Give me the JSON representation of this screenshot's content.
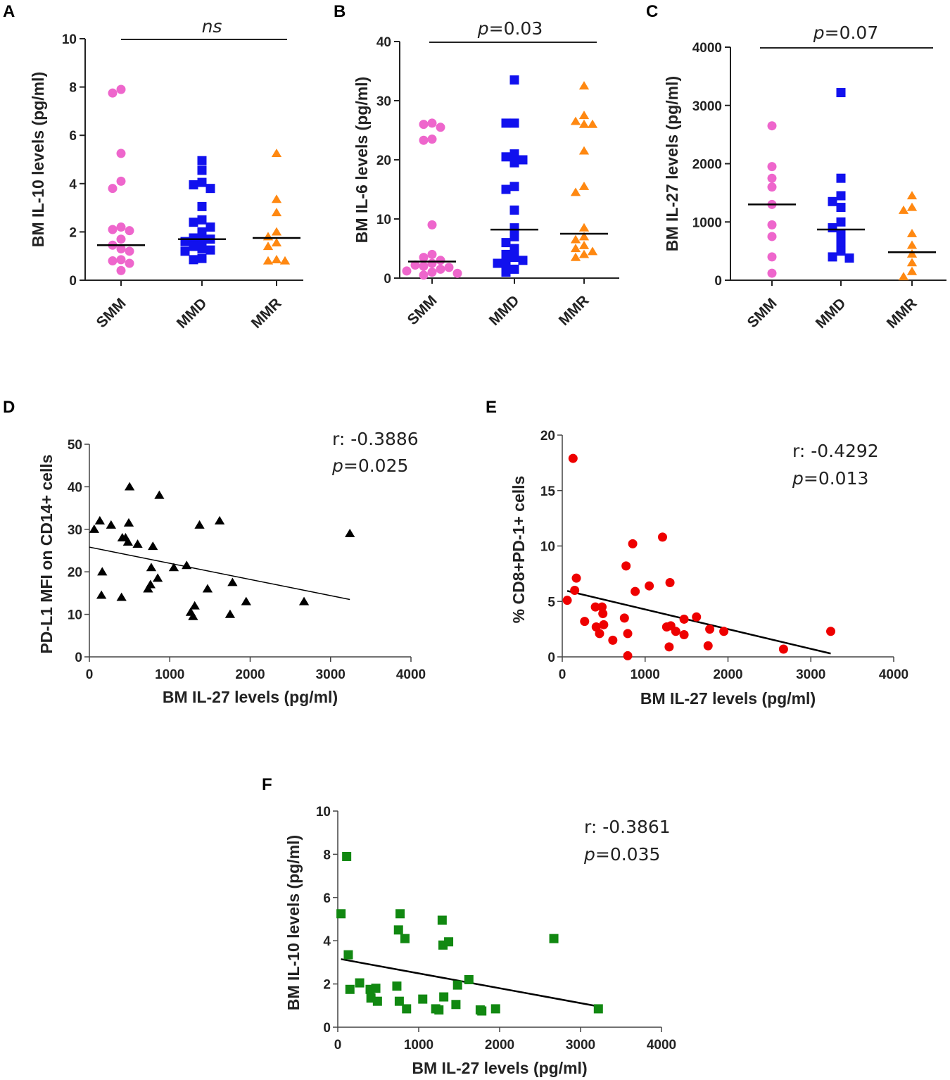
{
  "chart_data": [
    {
      "id": "A",
      "type": "scatter",
      "panel_label": "A",
      "ylabel": "BM IL-10 levels (pg/ml)",
      "ylim": [
        0,
        10
      ],
      "yticks": [
        0,
        2,
        4,
        6,
        8,
        10
      ],
      "categories": [
        "SMM",
        "MMD",
        "MMR"
      ],
      "colors": [
        "#ee66cc",
        "#1111ee",
        "#ff8811"
      ],
      "markers": [
        "circle",
        "square",
        "triangle"
      ],
      "groups": [
        [
          7.9,
          7.75,
          5.25,
          4.1,
          3.8,
          2.2,
          2.1,
          2.05,
          1.7,
          1.45,
          1.3,
          1.2,
          0.85,
          0.8,
          0.7,
          0.4
        ],
        [
          4.95,
          4.55,
          4.05,
          3.95,
          3.8,
          3.05,
          2.5,
          2.4,
          2.2,
          2.0,
          1.75,
          1.7,
          1.65,
          1.6,
          1.4,
          1.3,
          1.25,
          1.2,
          0.9,
          0.85
        ],
        [
          5.25,
          3.35,
          2.8,
          2.0,
          1.8,
          1.55,
          1.4,
          0.85,
          0.8,
          0.8
        ]
      ],
      "medians": [
        1.45,
        1.7,
        1.75
      ],
      "significance": "ns",
      "significance_italic": true
    },
    {
      "id": "B",
      "type": "scatter",
      "panel_label": "B",
      "ylabel": "BM IL-6 levels (pg/ml)",
      "ylim": [
        0,
        40
      ],
      "yticks": [
        0,
        10,
        20,
        30,
        40
      ],
      "categories": [
        "SMM",
        "MMD",
        "MMR"
      ],
      "colors": [
        "#ee66cc",
        "#1111ee",
        "#ff8811"
      ],
      "markers": [
        "circle",
        "square",
        "triangle"
      ],
      "groups": [
        [
          26.2,
          26.0,
          25.5,
          23.5,
          23.3,
          9.0,
          4.0,
          3.5,
          3.0,
          2.5,
          2.2,
          2.0,
          1.8,
          1.5,
          1.2,
          1.0,
          0.8,
          0.5
        ],
        [
          33.5,
          26.2,
          26.2,
          21.0,
          20.5,
          20.0,
          19.5,
          15.5,
          15.0,
          11.5,
          8.5,
          7.0,
          6.0,
          5.0,
          4.0,
          3.5,
          3.0,
          2.5,
          2.5,
          1.5,
          1.0
        ],
        [
          32.5,
          27.5,
          26.5,
          26.0,
          26.0,
          21.5,
          15.5,
          14.5,
          8.5,
          7.0,
          6.5,
          5.5,
          5.0,
          4.5,
          4.0,
          3.5
        ]
      ],
      "medians": [
        2.8,
        8.2,
        7.5
      ],
      "significance_prefix": "p",
      "significance_value": "=0.03"
    },
    {
      "id": "C",
      "type": "scatter",
      "panel_label": "C",
      "ylabel": "BM IL-27 levels (pg/ml)",
      "ylim": [
        0,
        4000
      ],
      "yticks": [
        0,
        1000,
        2000,
        3000,
        4000
      ],
      "categories": [
        "SMM",
        "MMD",
        "MMR"
      ],
      "colors": [
        "#ee66cc",
        "#1111ee",
        "#ff8811"
      ],
      "markers": [
        "circle",
        "square",
        "triangle"
      ],
      "groups": [
        [
          2650,
          1950,
          1750,
          1600,
          1300,
          950,
          750,
          400,
          120
        ],
        [
          3220,
          1750,
          1450,
          1350,
          1250,
          1000,
          900,
          800,
          650,
          500,
          400,
          380
        ],
        [
          1450,
          1250,
          1200,
          800,
          600,
          450,
          300,
          150,
          60
        ]
      ],
      "medians": [
        1300,
        870,
        480
      ],
      "significance_prefix": "p",
      "significance_value": "=0.07"
    },
    {
      "id": "D",
      "type": "scatter",
      "panel_label": "D",
      "xlabel": "BM IL-27 levels (pg/ml)",
      "ylabel": "PD-L1 MFI on CD14+ cells",
      "xlim": [
        0,
        4000
      ],
      "xticks": [
        0,
        1000,
        2000,
        3000,
        4000
      ],
      "ylim": [
        0,
        50
      ],
      "yticks": [
        0,
        10,
        20,
        30,
        40,
        50
      ],
      "color": "#000000",
      "marker": "triangle",
      "points": [
        [
          60,
          30
        ],
        [
          130,
          32
        ],
        [
          160,
          20
        ],
        [
          150,
          14.5
        ],
        [
          270,
          31
        ],
        [
          400,
          14
        ],
        [
          410,
          28
        ],
        [
          450,
          28
        ],
        [
          480,
          27
        ],
        [
          490,
          31.5
        ],
        [
          500,
          40
        ],
        [
          600,
          26.5
        ],
        [
          730,
          16
        ],
        [
          760,
          17
        ],
        [
          770,
          21
        ],
        [
          790,
          26
        ],
        [
          850,
          18.5
        ],
        [
          870,
          38
        ],
        [
          1050,
          21
        ],
        [
          1210,
          21.5
        ],
        [
          1260,
          10.5
        ],
        [
          1290,
          9.5
        ],
        [
          1310,
          12
        ],
        [
          1370,
          31
        ],
        [
          1470,
          16
        ],
        [
          1620,
          32
        ],
        [
          1750,
          10
        ],
        [
          1780,
          17.5
        ],
        [
          1950,
          13
        ],
        [
          2670,
          13
        ],
        [
          3240,
          29
        ]
      ],
      "regression": [
        [
          0,
          25.8
        ],
        [
          3240,
          13.5
        ]
      ],
      "r_label": "r: -0.3886",
      "p_prefix": "p",
      "p_value": "=0.025"
    },
    {
      "id": "E",
      "type": "scatter",
      "panel_label": "E",
      "xlabel": "BM IL-27 levels (pg/ml)",
      "ylabel": "% CD8+PD-1+ cells",
      "xlim": [
        0,
        4000
      ],
      "xticks": [
        0,
        1000,
        2000,
        3000,
        4000
      ],
      "ylim": [
        0,
        20
      ],
      "yticks": [
        0,
        5,
        10,
        15,
        20
      ],
      "color": "#ee0000",
      "marker": "circle",
      "points": [
        [
          60,
          5.1
        ],
        [
          130,
          17.9
        ],
        [
          150,
          6.0
        ],
        [
          170,
          7.1
        ],
        [
          270,
          3.2
        ],
        [
          400,
          4.5
        ],
        [
          410,
          2.7
        ],
        [
          450,
          2.1
        ],
        [
          480,
          4.5
        ],
        [
          490,
          3.9
        ],
        [
          500,
          2.9
        ],
        [
          610,
          1.5
        ],
        [
          750,
          3.5
        ],
        [
          770,
          8.2
        ],
        [
          790,
          0.1
        ],
        [
          790,
          2.1
        ],
        [
          850,
          10.2
        ],
        [
          880,
          5.9
        ],
        [
          1050,
          6.4
        ],
        [
          1210,
          10.8
        ],
        [
          1260,
          2.7
        ],
        [
          1290,
          0.9
        ],
        [
          1300,
          6.7
        ],
        [
          1310,
          2.8
        ],
        [
          1370,
          2.3
        ],
        [
          1470,
          3.4
        ],
        [
          1470,
          2.0
        ],
        [
          1620,
          3.6
        ],
        [
          1760,
          1.0
        ],
        [
          1780,
          2.5
        ],
        [
          1950,
          2.3
        ],
        [
          2670,
          0.7
        ],
        [
          3240,
          2.3
        ]
      ],
      "regression": [
        [
          60,
          5.95
        ],
        [
          3240,
          0.3
        ]
      ],
      "r_label": "r: -0.4292",
      "p_prefix": "p",
      "p_value": "=0.013"
    },
    {
      "id": "F",
      "type": "scatter",
      "panel_label": "F",
      "xlabel": "BM IL-27 levels (pg/ml)",
      "ylabel": "BM IL-10 levels (pg/ml)",
      "xlim": [
        0,
        4000
      ],
      "xticks": [
        0,
        1000,
        2000,
        3000,
        4000
      ],
      "ylim": [
        0,
        10
      ],
      "yticks": [
        0,
        2,
        4,
        6,
        8,
        10
      ],
      "color": "#118811",
      "marker": "square",
      "points": [
        [
          40,
          5.25
        ],
        [
          110,
          7.9
        ],
        [
          130,
          3.35
        ],
        [
          150,
          1.75
        ],
        [
          270,
          2.05
        ],
        [
          400,
          1.75
        ],
        [
          410,
          1.35
        ],
        [
          470,
          1.8
        ],
        [
          490,
          1.2
        ],
        [
          730,
          1.9
        ],
        [
          750,
          4.5
        ],
        [
          760,
          1.2
        ],
        [
          770,
          5.25
        ],
        [
          830,
          4.1
        ],
        [
          850,
          0.85
        ],
        [
          1050,
          1.3
        ],
        [
          1210,
          0.85
        ],
        [
          1250,
          0.8
        ],
        [
          1290,
          4.95
        ],
        [
          1300,
          3.8
        ],
        [
          1310,
          1.4
        ],
        [
          1370,
          3.95
        ],
        [
          1460,
          1.05
        ],
        [
          1480,
          1.95
        ],
        [
          1620,
          2.2
        ],
        [
          1760,
          0.8
        ],
        [
          1780,
          0.75
        ],
        [
          1950,
          0.85
        ],
        [
          2670,
          4.1
        ],
        [
          3220,
          0.85
        ]
      ],
      "regression": [
        [
          40,
          3.15
        ],
        [
          3240,
          0.95
        ]
      ],
      "r_label": "r: -0.3861",
      "p_prefix": "p",
      "p_value": "=0.035"
    }
  ]
}
